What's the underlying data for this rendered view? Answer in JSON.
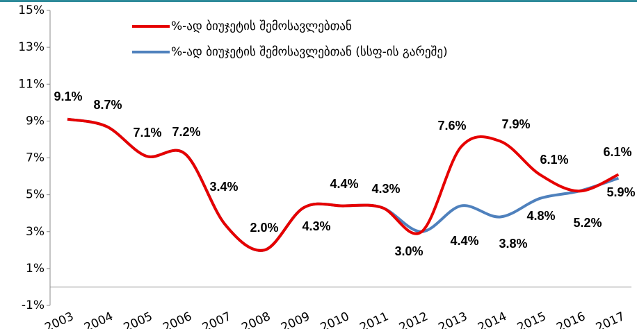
{
  "chart_data": {
    "type": "line",
    "categories": [
      "2003",
      "2004",
      "2005",
      "2006",
      "2007",
      "2008",
      "2009",
      "2010",
      "2011",
      "2012",
      "2013",
      "2014",
      "2015",
      "2016",
      "2017"
    ],
    "series": [
      {
        "name": "%-ად ბიუჯეტის შემოსავლებთან",
        "color": "#e60000",
        "values": [
          9.1,
          8.7,
          7.1,
          7.2,
          3.4,
          2.0,
          4.3,
          4.4,
          4.3,
          3.0,
          7.6,
          7.9,
          6.1,
          5.2,
          6.1
        ],
        "value_labels": [
          "9.1%",
          "8.7%",
          "7.1%",
          "7.2%",
          "3.4%",
          "2.0%",
          "4.3%",
          "4.4%",
          "4.3%",
          "3.0%",
          "7.6%",
          "7.9%",
          "6.1%",
          "5.2%",
          "6.1%"
        ]
      },
      {
        "name": "%-ად ბიუჯეტის შემოსავლებთან (სსფ-ის გარეშე)",
        "color": "#4f81bd",
        "values": [
          9.1,
          8.7,
          7.1,
          7.2,
          3.4,
          2.0,
          4.3,
          4.4,
          4.3,
          3.0,
          4.4,
          3.8,
          4.8,
          5.2,
          5.9
        ],
        "value_labels": [
          null,
          null,
          null,
          null,
          null,
          null,
          null,
          null,
          null,
          null,
          "4.4%",
          "3.8%",
          "4.8%",
          null,
          "5.9%"
        ]
      }
    ],
    "ylim": [
      -1,
      15
    ],
    "yticks": [
      {
        "value": -1,
        "label": "-1%"
      },
      {
        "value": 1,
        "label": "1%"
      },
      {
        "value": 3,
        "label": "3%"
      },
      {
        "value": 5,
        "label": "5%"
      },
      {
        "value": 7,
        "label": "7%"
      },
      {
        "value": 9,
        "label": "9%"
      },
      {
        "value": 11,
        "label": "11%"
      },
      {
        "value": 13,
        "label": "13%"
      },
      {
        "value": 15,
        "label": "15%"
      }
    ],
    "grid": false,
    "legend": "top"
  }
}
